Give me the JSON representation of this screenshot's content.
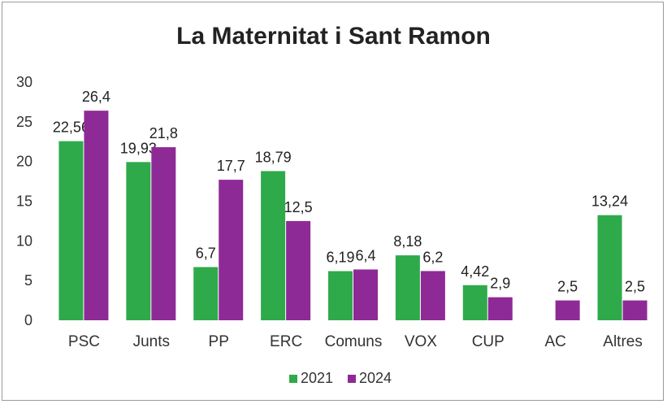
{
  "chart_data": {
    "type": "bar",
    "title": "La Maternitat i Sant Ramon",
    "categories": [
      "PSC",
      "Junts",
      "PP",
      "ERC",
      "Comuns",
      "VOX",
      "CUP",
      "AC",
      "Altres"
    ],
    "series": [
      {
        "name": "2021",
        "color": "#2eaa4a",
        "values": [
          22.56,
          19.93,
          6.7,
          18.79,
          6.19,
          8.18,
          4.42,
          null,
          13.24
        ],
        "labels": [
          "22,56",
          "19,93",
          "6,7",
          "18,79",
          "6,19",
          "8,18",
          "4,42",
          "",
          "13,24"
        ]
      },
      {
        "name": "2024",
        "color": "#8e2a96",
        "values": [
          26.4,
          21.8,
          17.7,
          12.5,
          6.4,
          6.2,
          2.9,
          2.5,
          2.5
        ],
        "labels": [
          "26,4",
          "21,8",
          "17,7",
          "12,5",
          "6,4",
          "6,2",
          "2,9",
          "2,5",
          "2,5"
        ]
      }
    ],
    "ylim": [
      0,
      30
    ],
    "yticks": [
      "0",
      "5",
      "10",
      "15",
      "20",
      "25",
      "30"
    ],
    "grid": false,
    "legend": "bottom"
  }
}
